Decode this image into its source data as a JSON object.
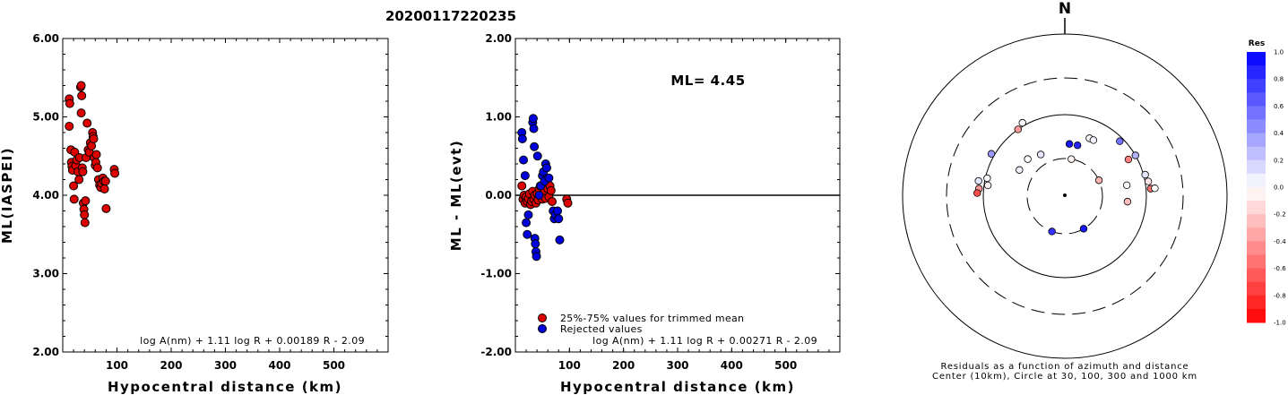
{
  "event_id": "20200117220235",
  "chart_data": [
    {
      "type": "scatter",
      "title": "",
      "xlabel": "Hypocentral distance (km)",
      "ylabel": "ML(IASPEI)",
      "xlim": [
        0,
        600
      ],
      "ylim": [
        2.0,
        6.0
      ],
      "x_ticks": [
        "100",
        "200",
        "300",
        "400",
        "500"
      ],
      "y_ticks": [
        "2.00",
        "3.00",
        "4.00",
        "5.00",
        "6.00"
      ],
      "formula": "log A(nm) + 1.11 log R + 0.00189 R - 2.09",
      "marker_color": "#dd0000",
      "points": [
        [
          12,
          5.23
        ],
        [
          13,
          5.17
        ],
        [
          12,
          4.88
        ],
        [
          15,
          4.58
        ],
        [
          16,
          4.42
        ],
        [
          17,
          4.37
        ],
        [
          18,
          4.32
        ],
        [
          20,
          4.12
        ],
        [
          21,
          3.95
        ],
        [
          22,
          4.55
        ],
        [
          24,
          4.38
        ],
        [
          26,
          4.45
        ],
        [
          28,
          4.3
        ],
        [
          30,
          4.2
        ],
        [
          31,
          4.48
        ],
        [
          33,
          5.38
        ],
        [
          34,
          5.4
        ],
        [
          35,
          5.27
        ],
        [
          34,
          5.05
        ],
        [
          36,
          4.35
        ],
        [
          37,
          4.3
        ],
        [
          38,
          3.9
        ],
        [
          39,
          3.82
        ],
        [
          40,
          3.75
        ],
        [
          41,
          3.65
        ],
        [
          42,
          3.93
        ],
        [
          43,
          4.48
        ],
        [
          45,
          4.92
        ],
        [
          47,
          4.58
        ],
        [
          49,
          4.55
        ],
        [
          51,
          4.67
        ],
        [
          53,
          4.63
        ],
        [
          55,
          4.8
        ],
        [
          56,
          4.75
        ],
        [
          57,
          4.72
        ],
        [
          58,
          4.48
        ],
        [
          60,
          4.38
        ],
        [
          61,
          4.42
        ],
        [
          62,
          4.52
        ],
        [
          64,
          4.35
        ],
        [
          66,
          4.2
        ],
        [
          68,
          4.13
        ],
        [
          70,
          4.1
        ],
        [
          72,
          4.15
        ],
        [
          74,
          4.22
        ],
        [
          76,
          4.18
        ],
        [
          77,
          4.08
        ],
        [
          79,
          4.18
        ],
        [
          80,
          3.83
        ],
        [
          95,
          4.33
        ],
        [
          96,
          4.28
        ]
      ]
    },
    {
      "type": "scatter",
      "title": "",
      "xlabel": "Hypocentral distance (km)",
      "ylabel": "ML - ML(evt)",
      "xlim": [
        0,
        600
      ],
      "ylim": [
        -2.0,
        2.0
      ],
      "x_ticks": [
        "100",
        "200",
        "300",
        "400",
        "500"
      ],
      "y_ticks": [
        "-2.00",
        "-1.00",
        "0.00",
        "1.00",
        "2.00"
      ],
      "reference_line": 0.0,
      "ml_label": "ML= 4.45",
      "formula": "log A(nm) + 1.11 log R + 0.00271 R - 2.09",
      "legend": [
        {
          "label": "25%-75% values for trimmed mean",
          "color": "#dd0000"
        },
        {
          "label": "Rejected values",
          "color": "#0000dd"
        }
      ],
      "series": [
        {
          "name": "25%-75% values for trimmed mean",
          "color": "#dd0000",
          "points": [
            [
              12,
              0.12
            ],
            [
              14,
              -0.05
            ],
            [
              16,
              0.0
            ],
            [
              18,
              -0.1
            ],
            [
              20,
              -0.02
            ],
            [
              22,
              -0.08
            ],
            [
              24,
              -0.04
            ],
            [
              26,
              0.02
            ],
            [
              28,
              -0.12
            ],
            [
              30,
              -0.08
            ],
            [
              32,
              0.05
            ],
            [
              34,
              -0.05
            ],
            [
              36,
              0.0
            ],
            [
              38,
              -0.1
            ],
            [
              40,
              0.02
            ],
            [
              42,
              -0.06
            ],
            [
              44,
              0.08
            ],
            [
              46,
              0.12
            ],
            [
              48,
              0.0
            ],
            [
              50,
              -0.05
            ],
            [
              52,
              0.1
            ],
            [
              54,
              0.04
            ],
            [
              56,
              -0.04
            ],
            [
              58,
              0.15
            ],
            [
              60,
              0.08
            ],
            [
              62,
              -0.02
            ],
            [
              64,
              0.12
            ],
            [
              66,
              0.06
            ],
            [
              68,
              -0.08
            ],
            [
              95,
              -0.05
            ],
            [
              97,
              -0.1
            ]
          ]
        },
        {
          "name": "Rejected values",
          "color": "#0000dd",
          "points": [
            [
              12,
              0.8
            ],
            [
              13,
              0.72
            ],
            [
              15,
              0.45
            ],
            [
              18,
              0.25
            ],
            [
              20,
              -0.35
            ],
            [
              22,
              -0.5
            ],
            [
              24,
              -0.25
            ],
            [
              32,
              0.93
            ],
            [
              33,
              0.98
            ],
            [
              34,
              0.85
            ],
            [
              35,
              0.62
            ],
            [
              36,
              -0.55
            ],
            [
              37,
              -0.62
            ],
            [
              38,
              -0.72
            ],
            [
              39,
              -0.78
            ],
            [
              41,
              0.5
            ],
            [
              44,
              0.0
            ],
            [
              47,
              0.12
            ],
            [
              50,
              0.25
            ],
            [
              52,
              0.3
            ],
            [
              54,
              0.18
            ],
            [
              56,
              0.4
            ],
            [
              58,
              0.35
            ],
            [
              62,
              0.22
            ],
            [
              70,
              -0.2
            ],
            [
              72,
              -0.3
            ],
            [
              74,
              -0.25
            ],
            [
              78,
              -0.2
            ],
            [
              80,
              -0.3
            ],
            [
              82,
              -0.57
            ]
          ]
        }
      ]
    },
    {
      "type": "scatter",
      "subtype": "polar residual map",
      "north_label": "N",
      "caption_line1": "Residuals as a function of azimuth and distance",
      "caption_line2": "Center (10km), Circle at 30, 100, 300 and 1000 km",
      "colorbar": {
        "title": "Res",
        "ticks": [
          "1.0",
          "0.8",
          "0.6",
          "0.4",
          "0.2",
          "0.0",
          "-0.2",
          "-0.4",
          "-0.6",
          "-0.8",
          "-1.0"
        ],
        "max_color": "#0000ff",
        "zero_color": "#ffffff",
        "min_color": "#ff0000"
      },
      "stations": [
        {
          "azimuth": 10,
          "distance_km": 30,
          "residual": -0.05
        },
        {
          "azimuth": 65,
          "distance_km": 30,
          "residual": -0.3
        },
        {
          "azimuth": 150,
          "distance_km": 30,
          "residual": 0.9
        },
        {
          "azimuth": 200,
          "distance_km": 30,
          "residual": 0.8
        },
        {
          "azimuth": 330,
          "distance_km": 40,
          "residual": 0.1
        },
        {
          "azimuth": 300,
          "distance_km": 45,
          "residual": 0.05
        },
        {
          "azimuth": 315,
          "distance_km": 45,
          "residual": 0.0
        },
        {
          "azimuth": 5,
          "distance_km": 45,
          "residual": 0.92
        },
        {
          "azimuth": 14,
          "distance_km": 45,
          "residual": 0.85
        },
        {
          "azimuth": 23,
          "distance_km": 60,
          "residual": -0.02
        },
        {
          "azimuth": 27,
          "distance_km": 60,
          "residual": 0.05
        },
        {
          "azimuth": 60,
          "distance_km": 80,
          "residual": -0.5
        },
        {
          "azimuth": 80,
          "distance_km": 60,
          "residual": 0.02
        },
        {
          "azimuth": 95,
          "distance_km": 60,
          "residual": -0.25
        },
        {
          "azimuth": 45,
          "distance_km": 90,
          "residual": 0.55
        },
        {
          "azimuth": 60,
          "distance_km": 100,
          "residual": 0.3
        },
        {
          "azimuth": 75,
          "distance_km": 105,
          "residual": 0.1
        },
        {
          "azimuth": 80,
          "distance_km": 110,
          "residual": -0.1
        },
        {
          "azimuth": 85,
          "distance_km": 115,
          "residual": -0.55
        },
        {
          "azimuth": 85,
          "distance_km": 130,
          "residual": 0.0
        },
        {
          "azimuth": 278,
          "distance_km": 90,
          "residual": -0.05
        },
        {
          "azimuth": 283,
          "distance_km": 95,
          "residual": 0.02
        },
        {
          "azimuth": 275,
          "distance_km": 115,
          "residual": -0.4
        },
        {
          "azimuth": 280,
          "distance_km": 120,
          "residual": 0.1
        },
        {
          "azimuth": 272,
          "distance_km": 120,
          "residual": -0.7
        },
        {
          "azimuth": 300,
          "distance_km": 110,
          "residual": 0.4
        },
        {
          "azimuth": 325,
          "distance_km": 100,
          "residual": -0.4
        },
        {
          "azimuth": 330,
          "distance_km": 110,
          "residual": 0.02
        }
      ]
    }
  ]
}
